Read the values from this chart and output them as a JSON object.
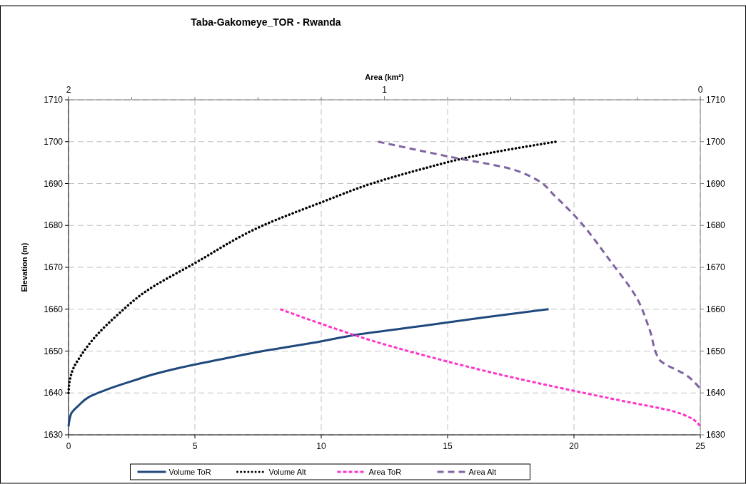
{
  "chart_data": {
    "type": "line",
    "title": "Taba-Gakomeye_TOR - Rwanda",
    "ylabel": "Elevation (m)",
    "x2label": "Area (km²)",
    "xlim": [
      0,
      25
    ],
    "xticks": [
      0,
      5,
      10,
      15,
      20,
      25
    ],
    "x2lim": [
      2,
      0
    ],
    "x2ticks": [
      2,
      1,
      0
    ],
    "ylim": [
      1630,
      1710
    ],
    "yticks": [
      1630,
      1640,
      1650,
      1660,
      1670,
      1680,
      1690,
      1700,
      1710
    ],
    "y2lim": [
      1630,
      1710
    ],
    "y2ticks": [
      1630,
      1640,
      1650,
      1660,
      1670,
      1680,
      1690,
      1700,
      1710
    ],
    "grid": true,
    "legend": "bottom",
    "series": [
      {
        "name": "Volume ToR",
        "color": "#1f497d",
        "line_style": "solid",
        "x": [
          0,
          0.1,
          0.4,
          0.8,
          1.6,
          2.6,
          3.4,
          4.4,
          6,
          7.7,
          9.7,
          11.5,
          14,
          16.4,
          19
        ],
        "values": [
          1632,
          1635,
          1637,
          1639,
          1641,
          1643,
          1644.5,
          1646,
          1648,
          1650,
          1652,
          1654,
          1656,
          1658,
          1660
        ]
      },
      {
        "name": "Volume Alt",
        "color": "#000000",
        "line_style": "dotted",
        "x": [
          0,
          0.05,
          0.2,
          0.5,
          1,
          2,
          3,
          5,
          7.7,
          10,
          12,
          14,
          16,
          19.3
        ],
        "values": [
          1640,
          1643,
          1646,
          1649,
          1653,
          1659,
          1664,
          1671,
          1680,
          1685.5,
          1690,
          1693.5,
          1696.5,
          1700
        ]
      },
      {
        "name": "Area ToR",
        "color": "#ff33cc",
        "line_style": "dashed",
        "axis": "x2",
        "x": [
          1.33,
          1.2,
          1.04,
          0.8,
          0.64,
          0.4,
          0.24,
          0.08,
          0.03,
          0
        ],
        "values": [
          1660,
          1656.5,
          1652.5,
          1647.5,
          1644.5,
          1640.5,
          1638,
          1635.5,
          1634,
          1632
        ]
      },
      {
        "name": "Area Alt",
        "color": "#8064a2",
        "line_style": "dashed",
        "axis": "x2",
        "x": [
          1.02,
          0.8,
          0.6,
          0.52,
          0.46,
          0.4,
          0.28,
          0.2,
          0.16,
          0.13,
          0.04,
          0
        ],
        "values": [
          1700,
          1696.5,
          1693.5,
          1691,
          1687,
          1682.5,
          1671,
          1662.5,
          1655,
          1648,
          1644,
          1641
        ]
      }
    ]
  }
}
